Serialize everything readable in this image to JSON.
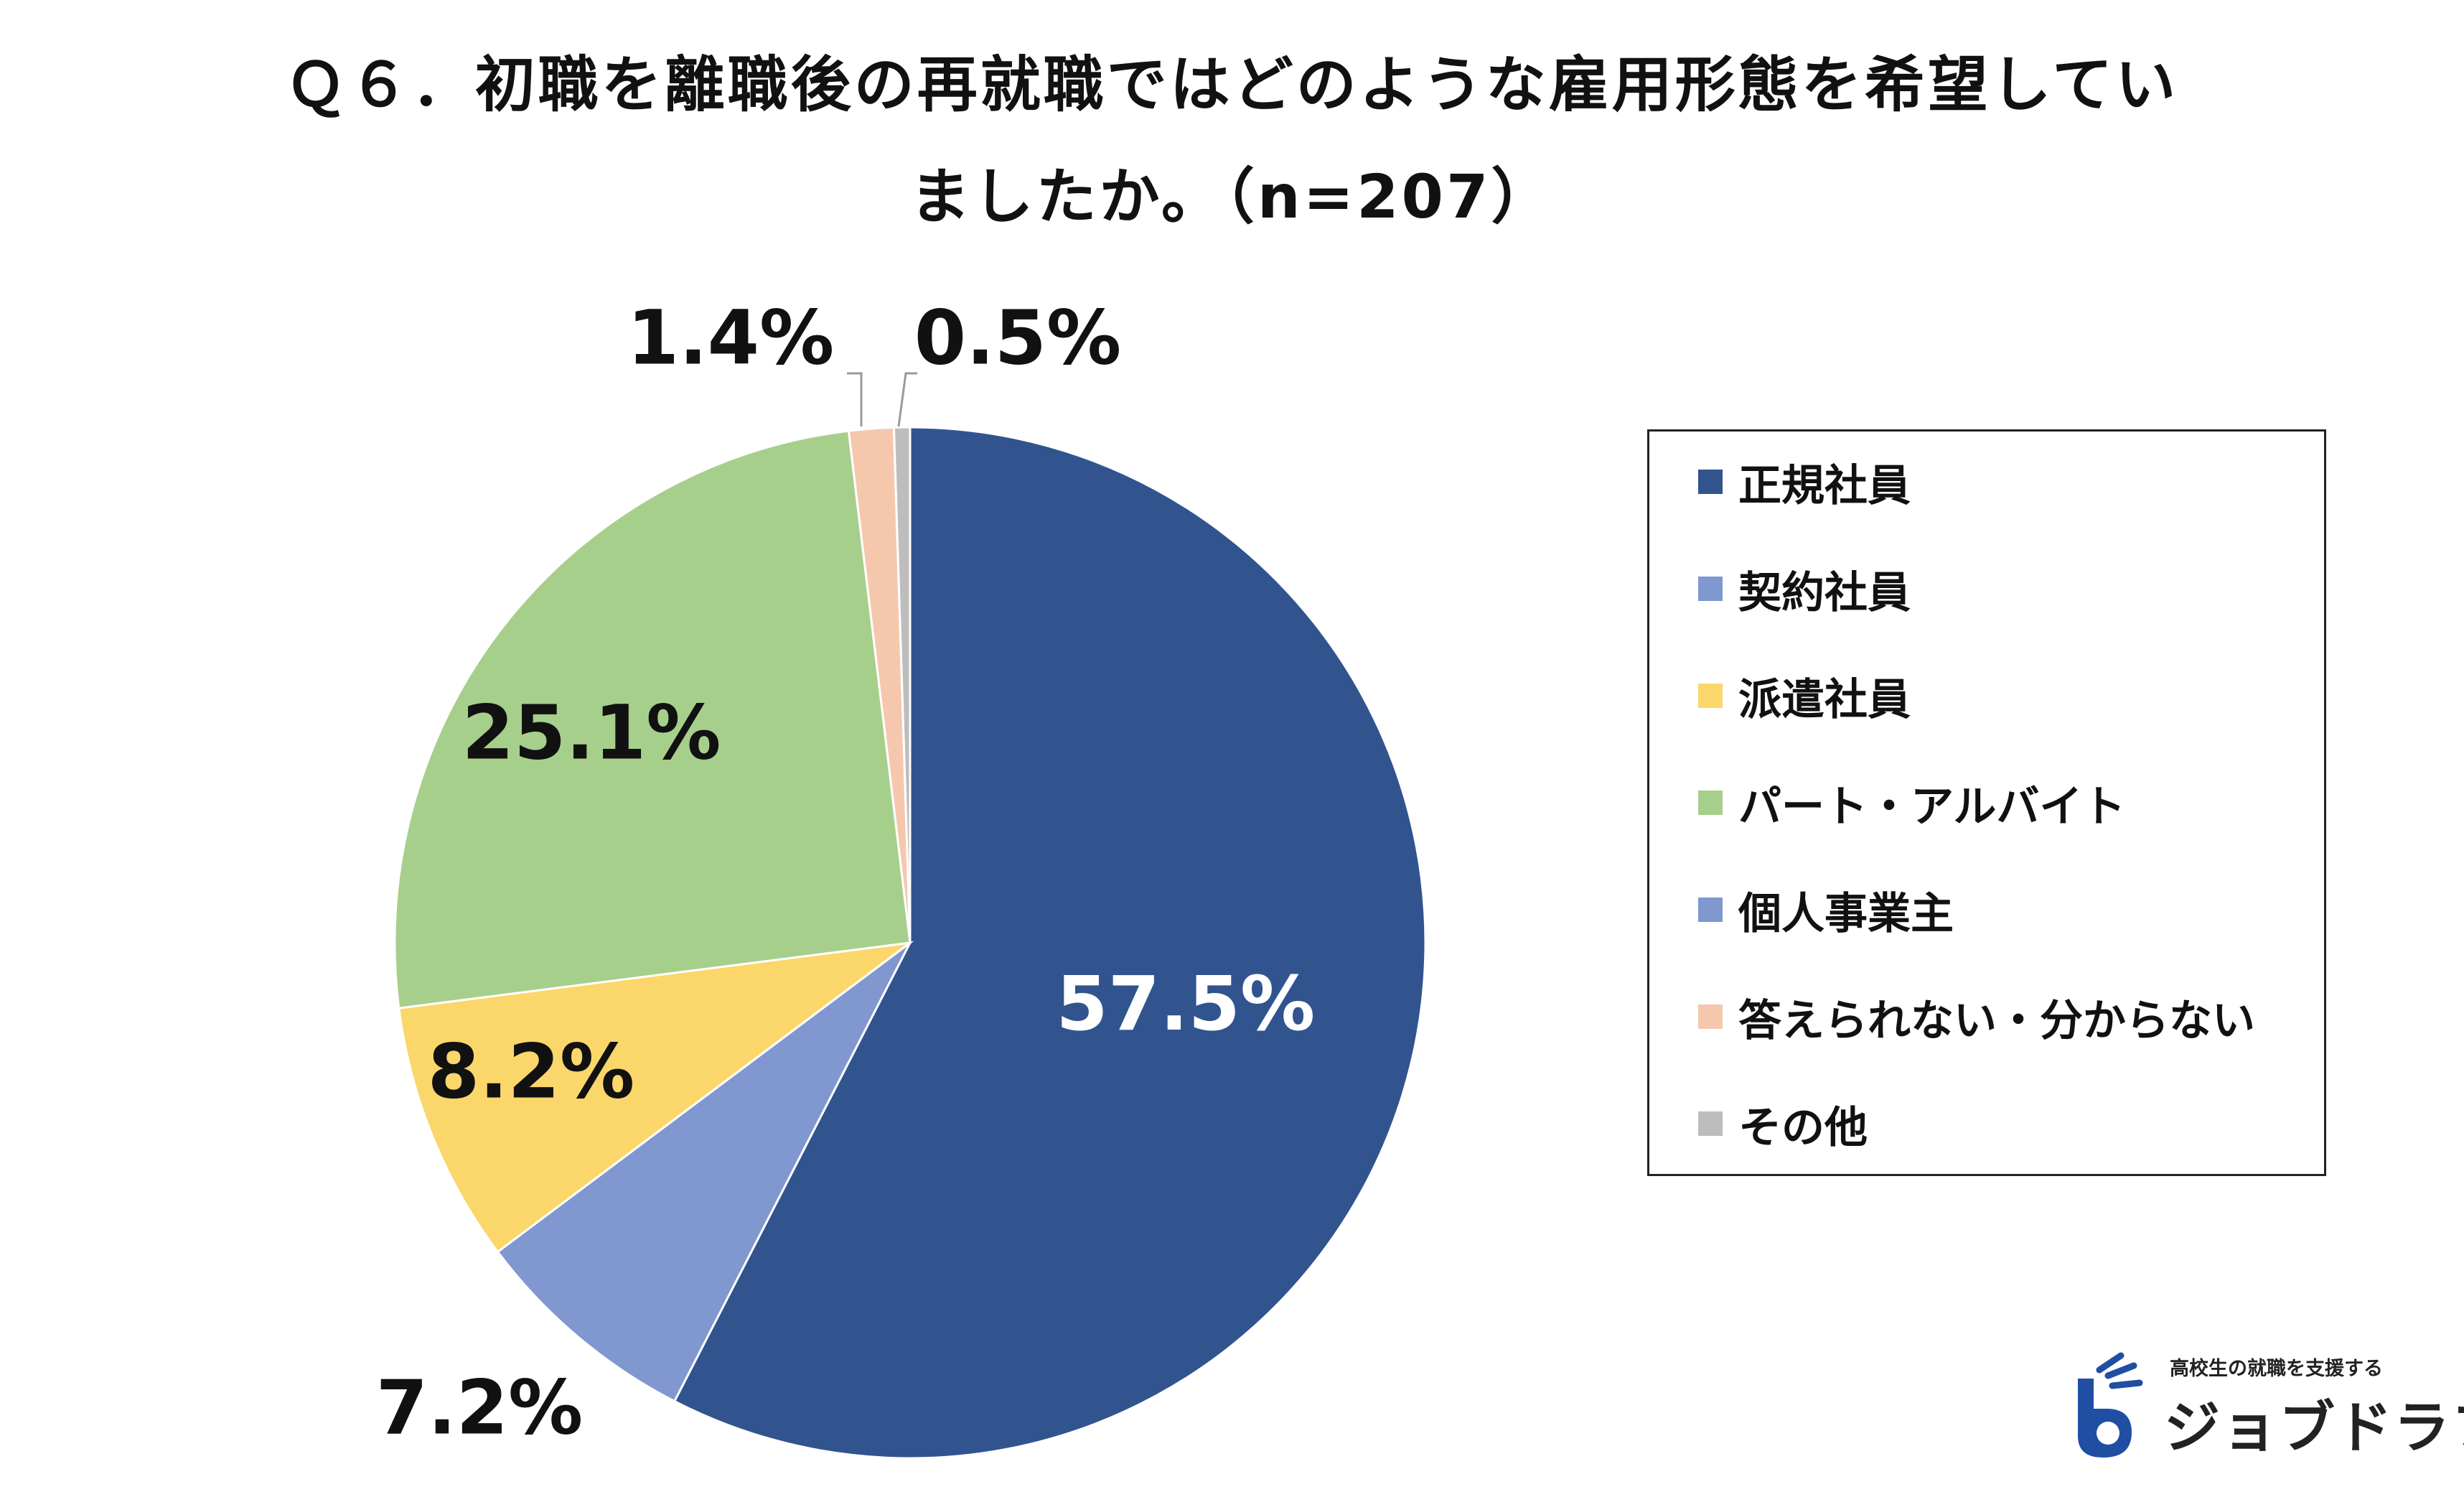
{
  "chart_data": {
    "type": "pie",
    "title_lines": [
      "Ｑ６．初職を離職後の再就職ではどのような雇用形態を希望してい",
      "ましたか。（n=207）"
    ],
    "categories": [
      "正規社員",
      "契約社員",
      "派遣社員",
      "パート・アルバイト",
      "個人事業主",
      "答えられない・分からない",
      "その他"
    ],
    "values": [
      57.5,
      7.2,
      8.2,
      25.1,
      0.0,
      1.4,
      0.5
    ],
    "data_labels": [
      "57.5%",
      "7.2%",
      "8.2%",
      "25.1%",
      "",
      "1.4%",
      "0.5%"
    ],
    "colors": [
      "#31548f",
      "#8098cf",
      "#fbd66b",
      "#a7cf8c",
      "#8098cf",
      "#f5c8ae",
      "#bdbdbd"
    ],
    "label_colors": [
      "#ffffff",
      "#111111",
      "#111111",
      "#111111",
      "#111111",
      "#111111",
      "#111111"
    ],
    "start_angle_deg": 0,
    "direction": "clockwise",
    "legend_position": "right"
  },
  "logo": {
    "tagline": "高校生の就職を支援する",
    "name": "ジョブドラフト"
  }
}
